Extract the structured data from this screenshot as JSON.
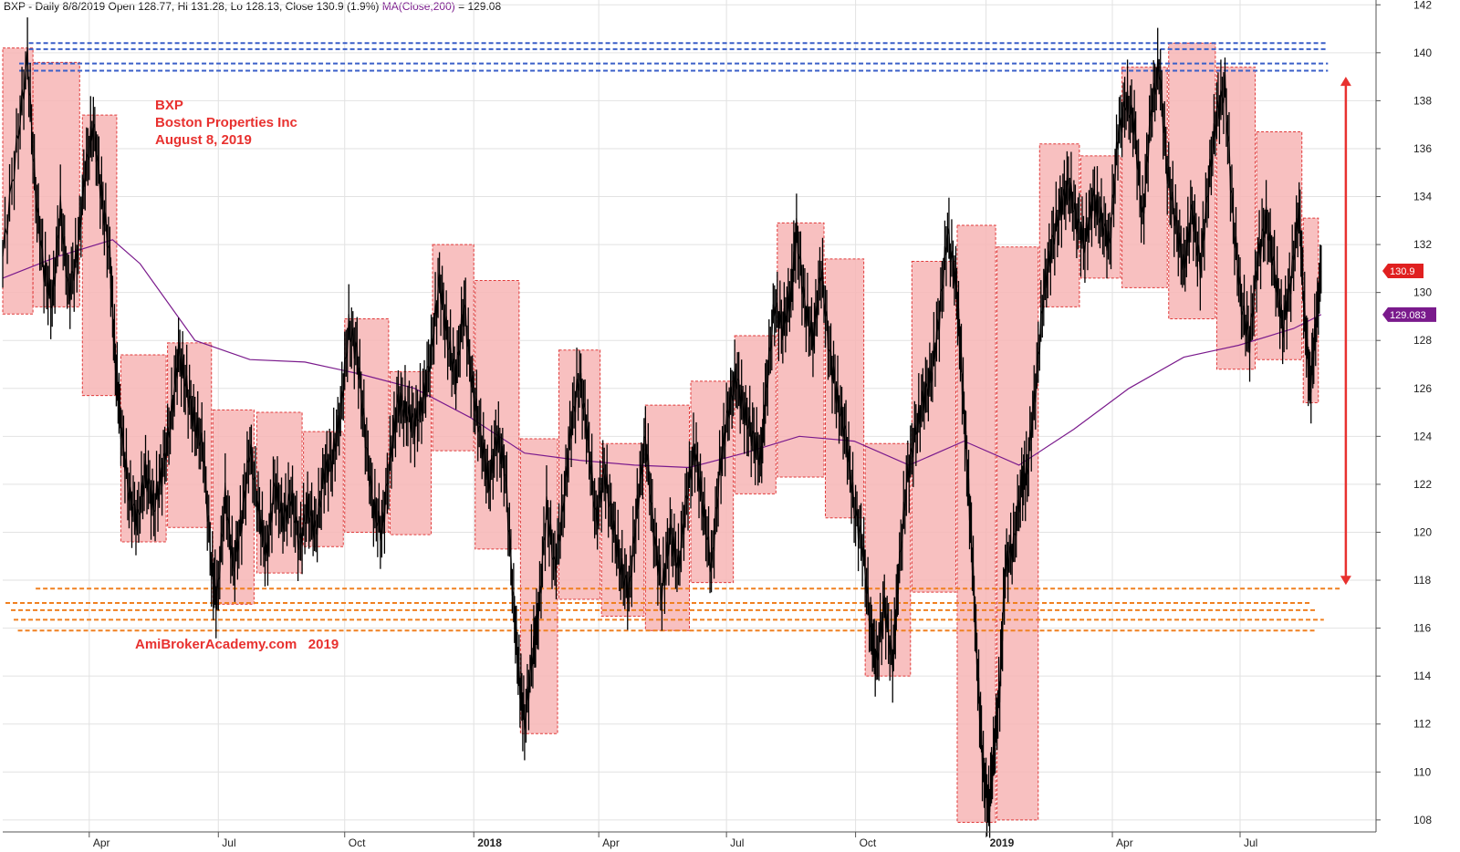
{
  "header": {
    "title": "BXP - Daily 8/8/2019 Open 128.77, Hi 131.28, Lo 128.13, Close 130.9 (1.9%)",
    "ma": "MA(Close,200)",
    "ma_value": " = 129.08"
  },
  "annotations": {
    "symbol": "BXP",
    "company": "Boston Properties Inc",
    "date": "August 8, 2019",
    "watermark": "AmiBrokerAcademy.com   2019"
  },
  "chart_data": {
    "type": "candlestick",
    "ylim": [
      107.5,
      142.2
    ],
    "y_ticks": [
      108,
      110,
      112,
      114,
      116,
      118,
      120,
      122,
      124,
      126,
      128,
      130,
      132,
      134,
      136,
      138,
      140,
      142
    ],
    "x_labels": [
      {
        "label": "Apr",
        "t": 0.063,
        "bold": false
      },
      {
        "label": "Jul",
        "t": 0.157,
        "bold": false
      },
      {
        "label": "Oct",
        "t": 0.249,
        "bold": false
      },
      {
        "label": "2018",
        "t": 0.343,
        "bold": true
      },
      {
        "label": "Apr",
        "t": 0.434,
        "bold": false
      },
      {
        "label": "Jul",
        "t": 0.527,
        "bold": false
      },
      {
        "label": "Oct",
        "t": 0.621,
        "bold": false
      },
      {
        "label": "2019",
        "t": 0.716,
        "bold": true
      },
      {
        "label": "Apr",
        "t": 0.808,
        "bold": false
      },
      {
        "label": "Jul",
        "t": 0.901,
        "bold": false
      }
    ],
    "price_path": [
      [
        0.0,
        131.5
      ],
      [
        0.01,
        136
      ],
      [
        0.018,
        139.8
      ],
      [
        0.024,
        134
      ],
      [
        0.03,
        131
      ],
      [
        0.036,
        129.5
      ],
      [
        0.042,
        133.5
      ],
      [
        0.048,
        130
      ],
      [
        0.054,
        131.5
      ],
      [
        0.06,
        135
      ],
      [
        0.066,
        137
      ],
      [
        0.072,
        134
      ],
      [
        0.078,
        131.5
      ],
      [
        0.082,
        127
      ],
      [
        0.086,
        124.5
      ],
      [
        0.092,
        121.5
      ],
      [
        0.098,
        120.5
      ],
      [
        0.104,
        122.5
      ],
      [
        0.11,
        121
      ],
      [
        0.116,
        122.5
      ],
      [
        0.122,
        124.5
      ],
      [
        0.128,
        127.5
      ],
      [
        0.134,
        126
      ],
      [
        0.14,
        124.5
      ],
      [
        0.146,
        123.5
      ],
      [
        0.152,
        118.5
      ],
      [
        0.156,
        117.2
      ],
      [
        0.162,
        121.5
      ],
      [
        0.168,
        118.5
      ],
      [
        0.174,
        120.5
      ],
      [
        0.18,
        123.5
      ],
      [
        0.186,
        121
      ],
      [
        0.192,
        119
      ],
      [
        0.198,
        122
      ],
      [
        0.204,
        120.5
      ],
      [
        0.21,
        121.5
      ],
      [
        0.216,
        119.5
      ],
      [
        0.222,
        121
      ],
      [
        0.228,
        120
      ],
      [
        0.234,
        122.5
      ],
      [
        0.24,
        123
      ],
      [
        0.246,
        125
      ],
      [
        0.252,
        128.5
      ],
      [
        0.258,
        127.5
      ],
      [
        0.264,
        124
      ],
      [
        0.27,
        121
      ],
      [
        0.276,
        120
      ],
      [
        0.282,
        123
      ],
      [
        0.288,
        125.5
      ],
      [
        0.294,
        125
      ],
      [
        0.3,
        124.5
      ],
      [
        0.306,
        125.5
      ],
      [
        0.312,
        127.5
      ],
      [
        0.318,
        130.5
      ],
      [
        0.324,
        128
      ],
      [
        0.33,
        126.5
      ],
      [
        0.336,
        129.5
      ],
      [
        0.342,
        126
      ],
      [
        0.348,
        124
      ],
      [
        0.354,
        122
      ],
      [
        0.36,
        124
      ],
      [
        0.366,
        122.5
      ],
      [
        0.372,
        117
      ],
      [
        0.376,
        114
      ],
      [
        0.38,
        112
      ],
      [
        0.386,
        115
      ],
      [
        0.39,
        116.5
      ],
      [
        0.396,
        121
      ],
      [
        0.402,
        118.5
      ],
      [
        0.408,
        121
      ],
      [
        0.414,
        124.5
      ],
      [
        0.42,
        126.5
      ],
      [
        0.426,
        124
      ],
      [
        0.432,
        120.5
      ],
      [
        0.438,
        122.5
      ],
      [
        0.444,
        120.5
      ],
      [
        0.45,
        118.5
      ],
      [
        0.456,
        117.5
      ],
      [
        0.462,
        121
      ],
      [
        0.468,
        124
      ],
      [
        0.474,
        120
      ],
      [
        0.48,
        117.5
      ],
      [
        0.486,
        120
      ],
      [
        0.492,
        118.5
      ],
      [
        0.498,
        121.5
      ],
      [
        0.504,
        123.5
      ],
      [
        0.51,
        121
      ],
      [
        0.516,
        118.5
      ],
      [
        0.522,
        122.5
      ],
      [
        0.528,
        125
      ],
      [
        0.534,
        126.5
      ],
      [
        0.54,
        125
      ],
      [
        0.546,
        124
      ],
      [
        0.552,
        123
      ],
      [
        0.556,
        126
      ],
      [
        0.562,
        129.5
      ],
      [
        0.568,
        128.5
      ],
      [
        0.574,
        130
      ],
      [
        0.578,
        132.5
      ],
      [
        0.584,
        129.5
      ],
      [
        0.59,
        128
      ],
      [
        0.596,
        131
      ],
      [
        0.602,
        127.5
      ],
      [
        0.608,
        125.5
      ],
      [
        0.614,
        124
      ],
      [
        0.62,
        121
      ],
      [
        0.626,
        119.5
      ],
      [
        0.632,
        116
      ],
      [
        0.636,
        114.5
      ],
      [
        0.642,
        117
      ],
      [
        0.648,
        114.5
      ],
      [
        0.652,
        118
      ],
      [
        0.658,
        122
      ],
      [
        0.664,
        124
      ],
      [
        0.67,
        125.5
      ],
      [
        0.676,
        126.5
      ],
      [
        0.682,
        129
      ],
      [
        0.688,
        132.5
      ],
      [
        0.694,
        130.5
      ],
      [
        0.698,
        127
      ],
      [
        0.702,
        123
      ],
      [
        0.706,
        119
      ],
      [
        0.71,
        114
      ],
      [
        0.714,
        110
      ],
      [
        0.718,
        108.5
      ],
      [
        0.722,
        111
      ],
      [
        0.726,
        113.5
      ],
      [
        0.73,
        118.5
      ],
      [
        0.736,
        119.5
      ],
      [
        0.742,
        122
      ],
      [
        0.746,
        122.5
      ],
      [
        0.752,
        126
      ],
      [
        0.758,
        130
      ],
      [
        0.764,
        132
      ],
      [
        0.77,
        133.5
      ],
      [
        0.776,
        134.5
      ],
      [
        0.782,
        133
      ],
      [
        0.788,
        132
      ],
      [
        0.794,
        134
      ],
      [
        0.8,
        133
      ],
      [
        0.806,
        132
      ],
      [
        0.812,
        136.5
      ],
      [
        0.818,
        138
      ],
      [
        0.824,
        137
      ],
      [
        0.83,
        133
      ],
      [
        0.836,
        137.5
      ],
      [
        0.842,
        139.5
      ],
      [
        0.848,
        135
      ],
      [
        0.854,
        133
      ],
      [
        0.86,
        131
      ],
      [
        0.866,
        133.5
      ],
      [
        0.872,
        131
      ],
      [
        0.878,
        134.5
      ],
      [
        0.884,
        137.5
      ],
      [
        0.89,
        138.5
      ],
      [
        0.896,
        133
      ],
      [
        0.902,
        129.5
      ],
      [
        0.908,
        128
      ],
      [
        0.914,
        131.5
      ],
      [
        0.92,
        133
      ],
      [
        0.926,
        131
      ],
      [
        0.932,
        128.5
      ],
      [
        0.938,
        130.5
      ],
      [
        0.944,
        133.5
      ],
      [
        0.948,
        129
      ],
      [
        0.952,
        126
      ],
      [
        0.956,
        128.5
      ],
      [
        0.96,
        130.9
      ]
    ],
    "ma200_path": [
      [
        0.0,
        130.6
      ],
      [
        0.04,
        131.5
      ],
      [
        0.08,
        132.2
      ],
      [
        0.1,
        131.2
      ],
      [
        0.14,
        128
      ],
      [
        0.18,
        127.2
      ],
      [
        0.22,
        127.1
      ],
      [
        0.26,
        126.6
      ],
      [
        0.3,
        126
      ],
      [
        0.34,
        124.8
      ],
      [
        0.38,
        123.3
      ],
      [
        0.42,
        123
      ],
      [
        0.46,
        122.8
      ],
      [
        0.5,
        122.7
      ],
      [
        0.54,
        123.3
      ],
      [
        0.58,
        124
      ],
      [
        0.62,
        123.8
      ],
      [
        0.66,
        122.8
      ],
      [
        0.7,
        123.8
      ],
      [
        0.74,
        122.8
      ],
      [
        0.78,
        124.3
      ],
      [
        0.82,
        126
      ],
      [
        0.86,
        127.3
      ],
      [
        0.9,
        127.8
      ],
      [
        0.94,
        128.5
      ],
      [
        0.96,
        129.08
      ]
    ],
    "boxes": [
      [
        0.0,
        0.022,
        129.1,
        140.2
      ],
      [
        0.022,
        0.056,
        129.4,
        139.6
      ],
      [
        0.058,
        0.083,
        125.7,
        137.4
      ],
      [
        0.086,
        0.119,
        119.6,
        127.4
      ],
      [
        0.12,
        0.152,
        120.2,
        127.9
      ],
      [
        0.153,
        0.183,
        117.0,
        125.1
      ],
      [
        0.185,
        0.218,
        118.3,
        125.0
      ],
      [
        0.219,
        0.248,
        119.4,
        124.2
      ],
      [
        0.249,
        0.281,
        120.0,
        128.9
      ],
      [
        0.282,
        0.312,
        119.9,
        126.7
      ],
      [
        0.313,
        0.343,
        123.4,
        132.0
      ],
      [
        0.344,
        0.376,
        119.3,
        130.5
      ],
      [
        0.377,
        0.404,
        111.6,
        123.9
      ],
      [
        0.405,
        0.435,
        117.2,
        127.6
      ],
      [
        0.436,
        0.467,
        116.5,
        123.7
      ],
      [
        0.468,
        0.5,
        115.9,
        125.3
      ],
      [
        0.501,
        0.532,
        117.9,
        126.3
      ],
      [
        0.533,
        0.563,
        121.6,
        128.2
      ],
      [
        0.564,
        0.598,
        122.3,
        132.9
      ],
      [
        0.599,
        0.627,
        120.6,
        131.4
      ],
      [
        0.628,
        0.661,
        114.0,
        123.7
      ],
      [
        0.662,
        0.694,
        117.5,
        131.3
      ],
      [
        0.695,
        0.723,
        107.9,
        132.8
      ],
      [
        0.724,
        0.754,
        108.0,
        131.9
      ],
      [
        0.755,
        0.784,
        129.4,
        136.2
      ],
      [
        0.785,
        0.814,
        130.6,
        135.7
      ],
      [
        0.815,
        0.848,
        130.2,
        139.4
      ],
      [
        0.849,
        0.883,
        128.9,
        140.4
      ],
      [
        0.884,
        0.912,
        126.8,
        139.4
      ],
      [
        0.913,
        0.946,
        127.2,
        136.7
      ],
      [
        0.947,
        0.958,
        125.4,
        133.1
      ]
    ],
    "resistance_lines": [
      {
        "y": 140.4,
        "t0": 0.019,
        "t1": 0.965
      },
      {
        "y": 140.15,
        "t0": 0.019,
        "t1": 0.965
      },
      {
        "y": 139.55,
        "t0": 0.012,
        "t1": 0.965
      },
      {
        "y": 139.25,
        "t0": 0.012,
        "t1": 0.965
      }
    ],
    "support_lines": [
      {
        "y": 117.65,
        "t0": 0.024,
        "t1": 0.974
      },
      {
        "y": 117.05,
        "t0": 0.002,
        "t1": 0.953
      },
      {
        "y": 116.75,
        "t0": 0.006,
        "t1": 0.957
      },
      {
        "y": 116.35,
        "t0": 0.008,
        "t1": 0.962
      },
      {
        "y": 115.9,
        "t0": 0.011,
        "t1": 0.957
      }
    ],
    "range_arrow": {
      "t": 0.978,
      "top": 139.0,
      "bottom": 117.8
    },
    "price_labels": [
      {
        "value": "130.9",
        "y": 130.9,
        "color": "#e02020"
      },
      {
        "value": "129.083",
        "y": 129.08,
        "color": "#7a1a8c"
      }
    ],
    "colors": {
      "box_fill": "#f7b5b5",
      "box_stroke": "#e03a3a",
      "price": "#000000",
      "ma": "#7a1a8c",
      "resistance": "#3a5fc8",
      "support": "#f08020",
      "arrow": "#e8312f",
      "grid": "#e2e2e2"
    }
  }
}
